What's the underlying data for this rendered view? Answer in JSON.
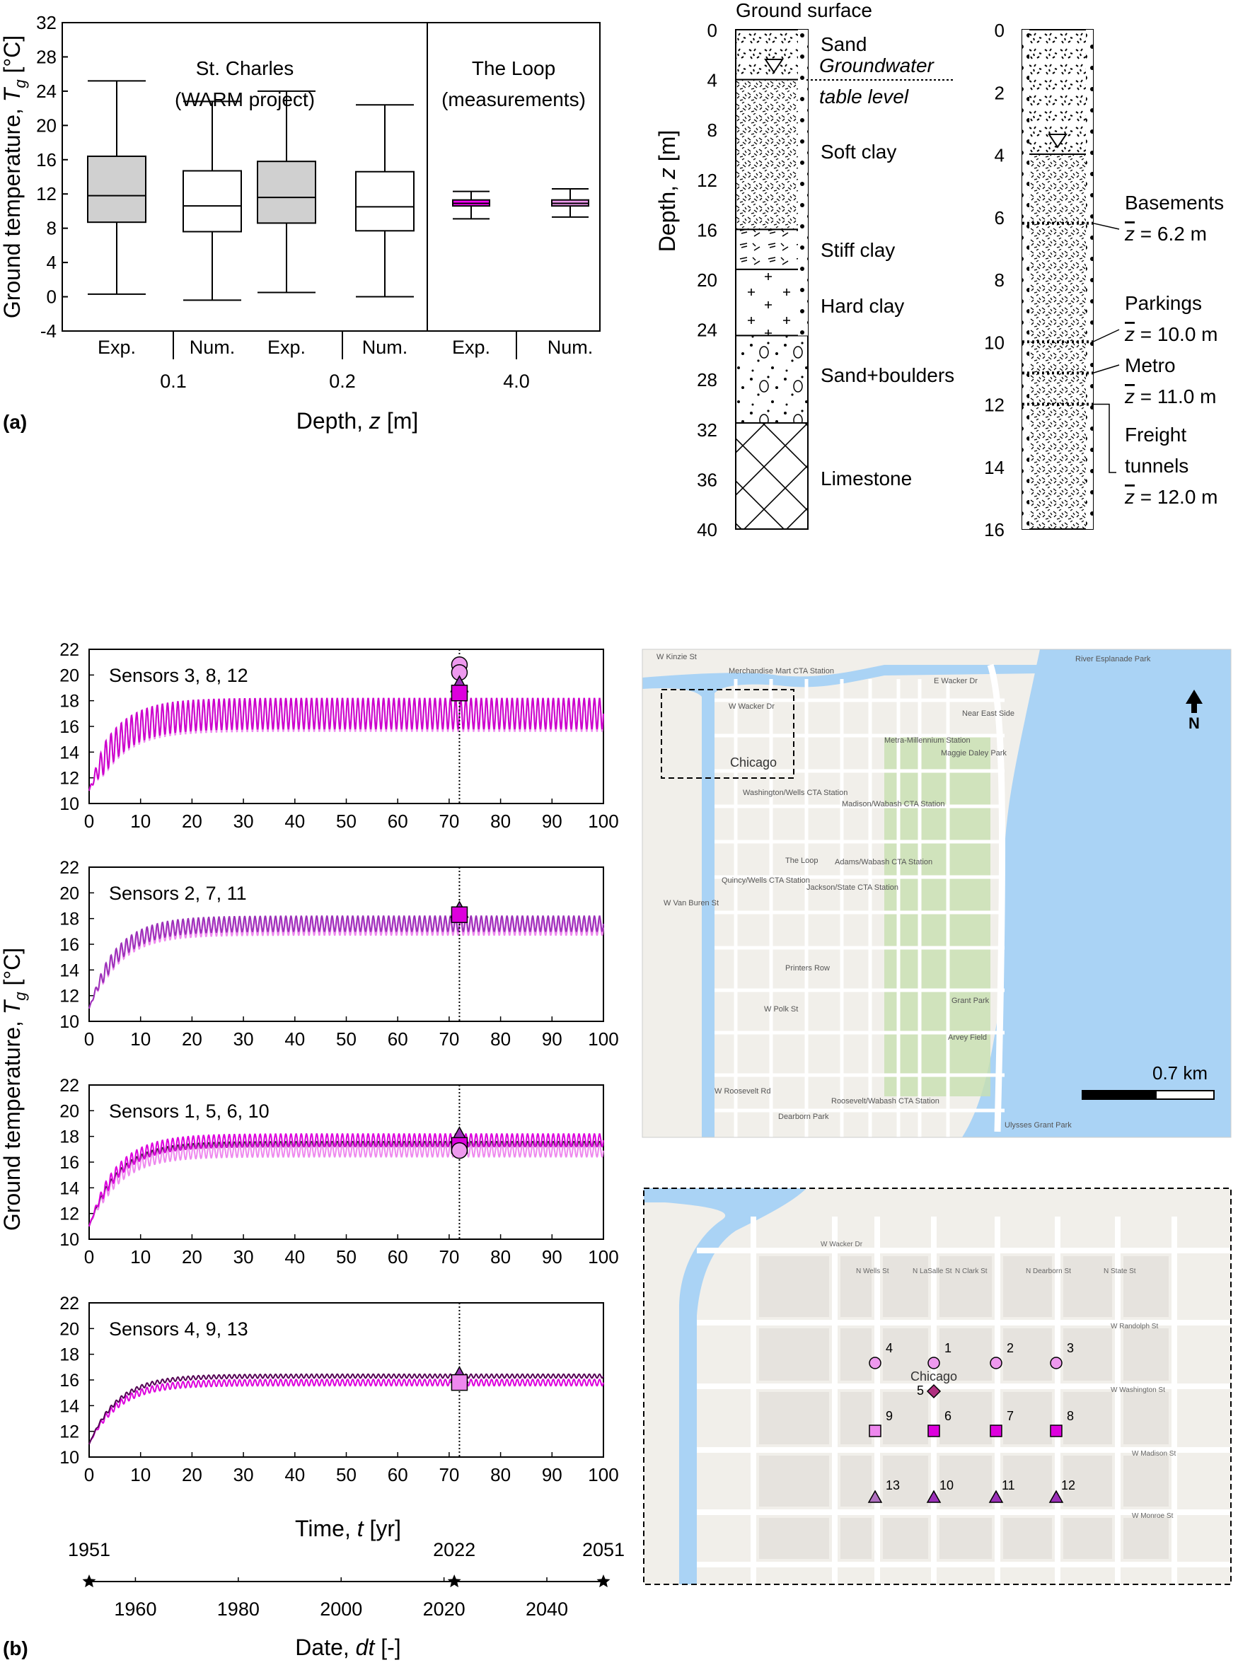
{
  "figure": {
    "panel_a_label": "(a)",
    "panel_b_label": "(b)"
  },
  "chart_data": [
    {
      "id": "boxplot",
      "type": "box",
      "ylabel_main": "Ground temperature, ",
      "ylabel_sym": "T",
      "ylabel_sub": "g",
      "ylabel_unit": " [°C]",
      "xlabel_main": "Depth, ",
      "xlabel_sym": "z",
      "xlabel_unit": " [m]",
      "ylim": [
        -4,
        32
      ],
      "yticks": [
        "32",
        "28",
        "24",
        "20",
        "16",
        "12",
        "8",
        "4",
        "0",
        "-4"
      ],
      "groups": [
        {
          "title_line1": "St. Charles",
          "title_line2": "(WARM project)"
        },
        {
          "title_line1": "The Loop",
          "title_line2": "(measurements)"
        }
      ],
      "depth_labels": [
        "0.1",
        "0.2",
        "4.0"
      ],
      "boxes": [
        {
          "label": "Exp.",
          "min": 0.3,
          "q1": 8.7,
          "median": 11.8,
          "q3": 16.4,
          "max": 25.2,
          "fill": "#d0d0d0"
        },
        {
          "label": "Num.",
          "min": -0.4,
          "q1": 7.6,
          "median": 10.6,
          "q3": 14.7,
          "max": 22.8,
          "fill": "#ffffff"
        },
        {
          "label": "Exp.",
          "min": 0.5,
          "q1": 8.6,
          "median": 11.6,
          "q3": 15.8,
          "max": 24.0,
          "fill": "#d0d0d0"
        },
        {
          "label": "Num.",
          "min": 0.0,
          "q1": 7.7,
          "median": 10.5,
          "q3": 14.6,
          "max": 22.4,
          "fill": "#ffffff"
        },
        {
          "label": "Exp.",
          "min": 9.1,
          "q1": 10.6,
          "median": 10.9,
          "q3": 11.3,
          "max": 12.3,
          "fill": "#ff00ff"
        },
        {
          "label": "Num.",
          "min": 9.3,
          "q1": 10.6,
          "median": 10.9,
          "q3": 11.3,
          "max": 12.6,
          "fill": "#ee99ee"
        }
      ]
    },
    {
      "id": "soil-profile",
      "type": "diagram",
      "ylabel_main": "Depth, ",
      "ylabel_sym": "z",
      "ylabel_unit": " [m]",
      "top_label": "Ground surface",
      "yticks": [
        "0",
        "4",
        "8",
        "12",
        "16",
        "20",
        "24",
        "28",
        "32",
        "36",
        "40"
      ],
      "layers": [
        {
          "name": "Sand",
          "top": 0,
          "bottom": 4
        },
        {
          "name": "Soft clay",
          "top": 4,
          "bottom": 16
        },
        {
          "name": "Stiff clay",
          "top": 16,
          "bottom": 19.2
        },
        {
          "name": "Hard clay",
          "top": 19.2,
          "bottom": 24.5
        },
        {
          "name": "Sand+boulders",
          "top": 24.5,
          "bottom": 31.5
        },
        {
          "name": "Limestone",
          "top": 31.5,
          "bottom": 40
        }
      ],
      "groundwater_line1": "Groundwater",
      "groundwater_line2": "table level"
    },
    {
      "id": "infrastructure-depths",
      "type": "diagram",
      "yticks": [
        "0",
        "2",
        "4",
        "6",
        "8",
        "10",
        "12",
        "14",
        "16"
      ],
      "infrastructure": [
        {
          "name": "Basements",
          "depth_text": " = 6.2 m",
          "depth": 6.2
        },
        {
          "name": "Parkings",
          "depth_text": " = 10.0 m",
          "depth": 10.0
        },
        {
          "name": "Metro",
          "depth_text": " = 11.0 m",
          "depth": 11.0
        },
        {
          "name_line1": "Freight",
          "name_line2": "tunnels",
          "depth_text": " = 12.0 m",
          "depth": 12.0
        }
      ],
      "zbar_symbol": "z"
    },
    {
      "id": "time-series",
      "type": "line",
      "ylabel_main": "Ground temperature, ",
      "ylabel_sym": "T",
      "ylabel_sub": "g",
      "ylabel_unit": " [°C]",
      "xlabel_main": "Time, ",
      "xlabel_sym": "t",
      "xlabel_unit": " [yr]",
      "xlim": [
        0,
        100
      ],
      "ylim": [
        10,
        22
      ],
      "xticks": [
        "0",
        "10",
        "20",
        "30",
        "40",
        "50",
        "60",
        "70",
        "80",
        "90",
        "100"
      ],
      "yticks": [
        "22",
        "20",
        "18",
        "16",
        "14",
        "12",
        "10"
      ],
      "measurement_time": 72,
      "panels": [
        {
          "title": "Sensors 3, 8, 12",
          "curves": [
            {
              "final": 16.9,
              "amp": 1.3,
              "color": "#ee88ee"
            },
            {
              "final": 17.0,
              "amp": 1.2,
              "color": "#cc00cc"
            }
          ],
          "markers": [
            {
              "shape": "circle",
              "value": 20.8,
              "color": "#ee99ee"
            },
            {
              "shape": "circle",
              "value": 20.2,
              "color": "#ee99ee"
            },
            {
              "shape": "triangle",
              "value": 19.2,
              "color": "#9b30b8"
            },
            {
              "shape": "square",
              "value": 18.6,
              "color": "#dd00dd"
            }
          ]
        },
        {
          "title": "Sensors 2, 7, 11",
          "curves": [
            {
              "final": 17.3,
              "amp": 0.6,
              "color": "#ee88ee"
            },
            {
              "final": 17.6,
              "amp": 0.6,
              "color": "#9b30b8"
            }
          ],
          "markers": [
            {
              "shape": "triangle",
              "value": 18.6,
              "color": "#9b30b8"
            },
            {
              "shape": "square",
              "value": 18.3,
              "color": "#dd00dd"
            }
          ]
        },
        {
          "title": "Sensors 1, 5, 6, 10",
          "curves": [
            {
              "final": 16.9,
              "amp": 0.5,
              "color": "#ee88ee"
            },
            {
              "final": 17.4,
              "amp": 0.2,
              "color": "#333333"
            },
            {
              "final": 17.7,
              "amp": 0.5,
              "color": "#dd00dd"
            }
          ],
          "markers": [
            {
              "shape": "triangle",
              "value": 18.0,
              "color": "#9b30b8"
            },
            {
              "shape": "square",
              "value": 17.3,
              "color": "#dd00dd"
            },
            {
              "shape": "circle",
              "value": 16.9,
              "color": "#ee99ee"
            }
          ]
        },
        {
          "title": "Sensors 4, 9, 13",
          "curves": [
            {
              "final": 15.8,
              "amp": 0.25,
              "color": "#dd00dd"
            },
            {
              "final": 16.3,
              "amp": 0.15,
              "color": "#550055"
            }
          ],
          "markers": [
            {
              "shape": "triangle",
              "value": 16.3,
              "color": "#9b30b8"
            },
            {
              "shape": "square",
              "value": 15.8,
              "color": "#ee88ee"
            }
          ]
        }
      ],
      "date_axis": {
        "xlabel_main": "Date, ",
        "xlabel_sym": "dt",
        "xlabel_unit": " [-]",
        "star_labels": [
          "1951",
          "2022",
          "2051"
        ],
        "ticks": [
          "1960",
          "1980",
          "2000",
          "2020",
          "2040"
        ]
      }
    },
    {
      "id": "map-overview",
      "type": "map",
      "scale_label": "0.7 km",
      "north_label": "N",
      "area_label": "Chicago",
      "place_labels": [
        "Merchandise Mart CTA Station",
        "River Esplanade Park",
        "Near East Side",
        "Maggie Daley Park",
        "The Loop",
        "Printers Row",
        "Grant Park",
        "Arvey Field",
        "Dearborn Park",
        "Ulysses Grant Park",
        "W Wacker Dr",
        "E Wacker Dr",
        "W Kinzie St",
        "W Van Buren St",
        "W Polk St",
        "W Roosevelt Rd",
        "Washington/Wells CTA Station",
        "Madison/Wabash CTA Station",
        "Adams/Wabash CTA Station",
        "Jackson/State CTA Station",
        "Quincy/Wells CTA Station",
        "Metra-Millennium Station",
        "Roosevelt/Wabash CTA Station"
      ]
    },
    {
      "id": "map-detail",
      "type": "map",
      "area_label": "Chicago",
      "street_labels": [
        "W Wacker Dr",
        "W Randolph St",
        "W Washington St",
        "W Madison St",
        "W Monroe St",
        "N Wells St",
        "N LaSalle St",
        "N Clark St",
        "N Dearborn St",
        "N State St"
      ],
      "sensors": [
        {
          "id": "1",
          "shape": "circle",
          "color": "#ee99ee"
        },
        {
          "id": "2",
          "shape": "circle",
          "color": "#ee99ee"
        },
        {
          "id": "3",
          "shape": "circle",
          "color": "#ee99ee"
        },
        {
          "id": "4",
          "shape": "circle",
          "color": "#ee99ee"
        },
        {
          "id": "5",
          "shape": "diamond",
          "color": "#b03080"
        },
        {
          "id": "6",
          "shape": "square",
          "color": "#dd00dd"
        },
        {
          "id": "7",
          "shape": "square",
          "color": "#dd00dd"
        },
        {
          "id": "8",
          "shape": "square",
          "color": "#dd00dd"
        },
        {
          "id": "9",
          "shape": "square",
          "color": "#ee88ee"
        },
        {
          "id": "10",
          "shape": "triangle",
          "color": "#9b30b8"
        },
        {
          "id": "11",
          "shape": "triangle",
          "color": "#9b30b8"
        },
        {
          "id": "12",
          "shape": "triangle",
          "color": "#9b30b8"
        },
        {
          "id": "13",
          "shape": "triangle",
          "color": "#b070c0"
        }
      ]
    }
  ]
}
